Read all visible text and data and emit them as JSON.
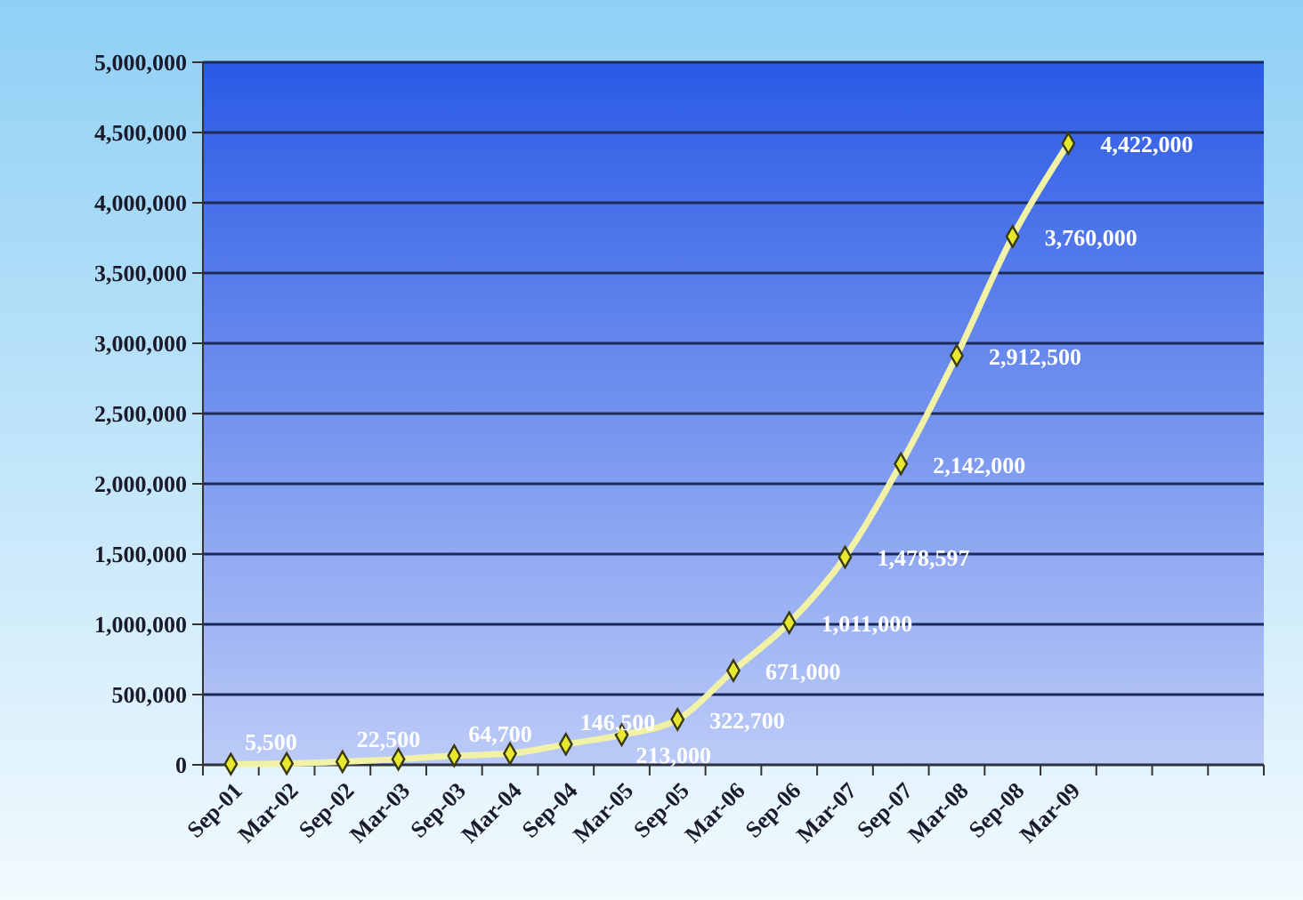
{
  "chart_data": {
    "type": "line",
    "categories": [
      "Sep-01",
      "Mar-02",
      "Sep-02",
      "Mar-03",
      "Sep-03",
      "Mar-04",
      "Sep-04",
      "Mar-05",
      "Sep-05",
      "Mar-06",
      "Sep-06",
      "Mar-07",
      "Sep-07",
      "Mar-08",
      "Sep-08",
      "Mar-09",
      null,
      null,
      null
    ],
    "series": [
      {
        "color": "#f2f2a6",
        "values": [
          5500,
          10000,
          22500,
          40000,
          64700,
          80000,
          146500,
          213000,
          322700,
          671000,
          1011000,
          1478597,
          2142000,
          2912500,
          3760000,
          4422000,
          null,
          null,
          null
        ],
        "value_labels": [
          "5,500",
          null,
          "22,500",
          null,
          "64,700",
          null,
          "146,500",
          "213,000",
          "322,700",
          "671,000",
          "1,011,000",
          "1,478,597",
          "2,142,000",
          "2,912,500",
          "3,760,000",
          "4,422,000",
          null,
          null,
          null
        ]
      }
    ],
    "ylim": [
      0,
      5000000
    ],
    "yticks": [
      {
        "value": 0,
        "label": "0"
      },
      {
        "value": 500000,
        "label": "500,000"
      },
      {
        "value": 1000000,
        "label": "1,000,000"
      },
      {
        "value": 1500000,
        "label": "1,500,000"
      },
      {
        "value": 2000000,
        "label": "2,000,000"
      },
      {
        "value": 2500000,
        "label": "2,500,000"
      },
      {
        "value": 3000000,
        "label": "3,000,000"
      },
      {
        "value": 3500000,
        "label": "3,500,000"
      },
      {
        "value": 4000000,
        "label": "4,000,000"
      },
      {
        "value": 4500000,
        "label": "4,500,000"
      },
      {
        "value": 5000000,
        "label": "5,000,000"
      }
    ],
    "grid": "y",
    "marker": "diamond",
    "line_style": "solid"
  }
}
